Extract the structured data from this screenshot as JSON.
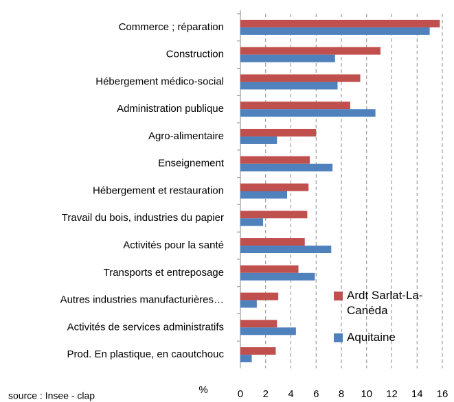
{
  "chart_data": {
    "type": "bar",
    "orientation": "horizontal",
    "categories": [
      "Commerce ; réparation",
      "Construction",
      "Hébergement médico-social",
      "Administration publique",
      "Agro-alimentaire",
      "Enseignement",
      "Hébergement et restauration",
      "Travail du bois, industries du papier",
      "Activités pour la santé",
      "Transports et entreposage",
      "Autres industries manufacturières…",
      "Activités de services administratifs",
      "Prod. En plastique, en caoutchouc"
    ],
    "series": [
      {
        "name": "Ardt Sarlat-La-Canéda",
        "color": "#c0504d",
        "values": [
          15.8,
          11.1,
          9.5,
          8.7,
          6.0,
          5.5,
          5.4,
          5.3,
          5.1,
          4.6,
          3.0,
          2.9,
          2.8
        ]
      },
      {
        "name": "Aquitaine",
        "color": "#4f81bd",
        "values": [
          15.0,
          7.5,
          7.7,
          10.7,
          2.9,
          7.3,
          3.7,
          1.8,
          7.2,
          5.9,
          1.3,
          4.4,
          0.9
        ]
      }
    ],
    "xlabel": "%",
    "xlim": [
      0,
      16
    ],
    "xticks": [
      0,
      2,
      4,
      6,
      8,
      10,
      12,
      14,
      16
    ],
    "grid": true,
    "legend": "right",
    "source": "source : Insee - clap"
  }
}
